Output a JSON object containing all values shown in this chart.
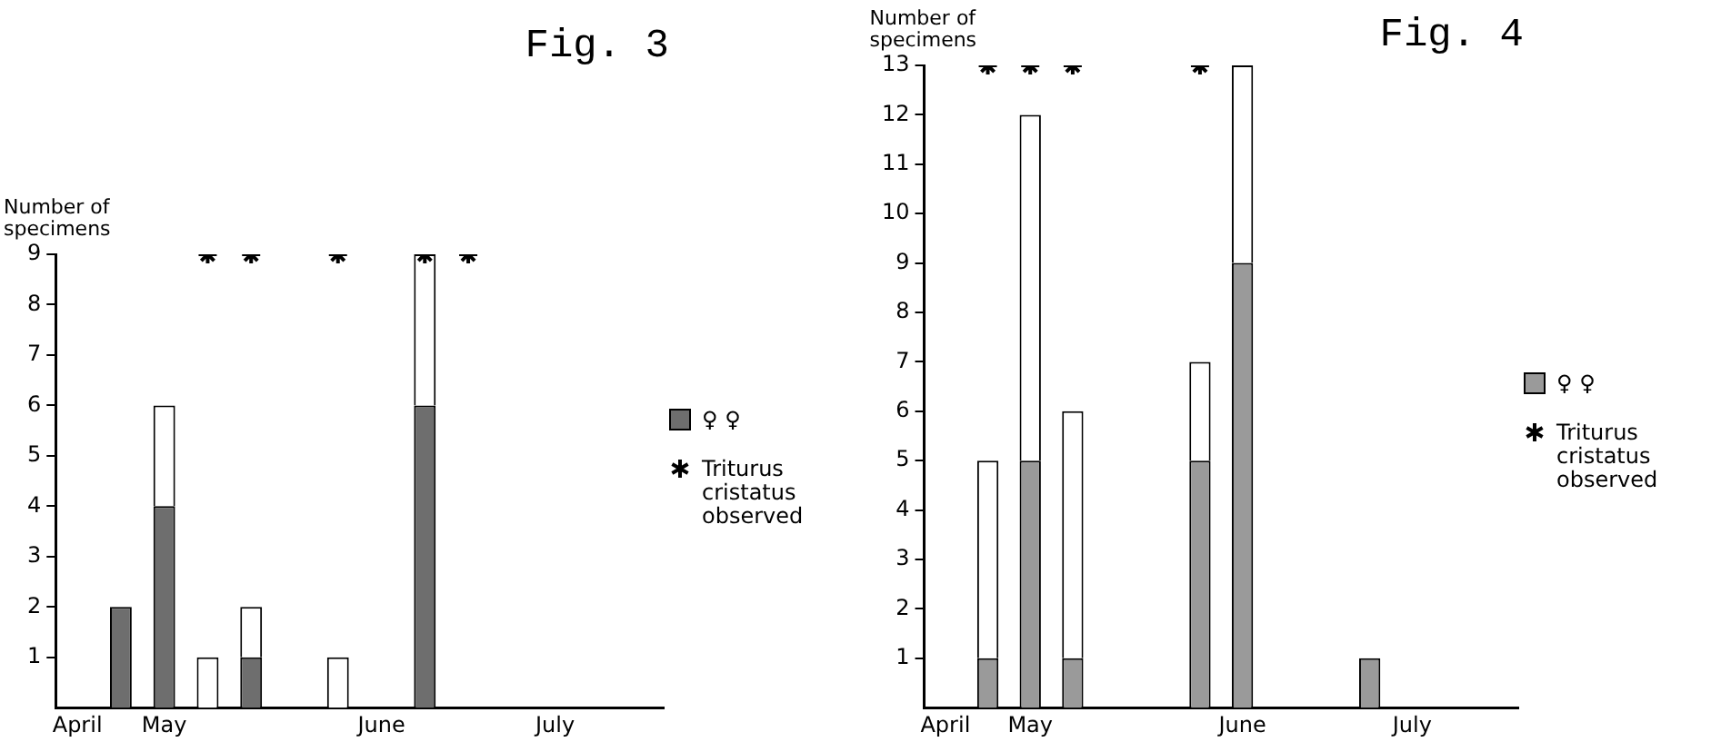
{
  "chart_data": [
    {
      "type": "bar",
      "title": "Fig. 3",
      "ylabel": "Number of specimens",
      "categories": [
        "April",
        null,
        "May",
        null,
        null,
        null,
        null,
        "June",
        null,
        null,
        null,
        "July",
        null,
        null
      ],
      "stacked": true,
      "ylim": [
        0,
        9
      ],
      "yticks": [
        1,
        2,
        3,
        4,
        5,
        6,
        7,
        8,
        9
      ],
      "grid": false,
      "legend": "right",
      "marker": "cross",
      "series": [
        {
          "name": "♀ ♀",
          "color": "#6e6e6e",
          "values": [
            null,
            2,
            4,
            null,
            1,
            null,
            null,
            null,
            6,
            null,
            null,
            null,
            null,
            null
          ]
        },
        {
          "color": "#ffffff",
          "values": [
            null,
            null,
            2,
            1,
            1,
            null,
            1,
            null,
            3,
            null,
            null,
            null,
            null,
            null
          ]
        },
        {
          "type": "scatter",
          "name": "Triturus cristatus observed",
          "color": "#000000",
          "values": [
            null,
            null,
            null,
            9,
            9,
            null,
            9,
            null,
            9,
            9,
            null,
            null,
            null,
            null
          ]
        }
      ]
    },
    {
      "type": "bar",
      "title": "Fig. 4",
      "ylabel": "Number of specimens",
      "categories": [
        "April",
        null,
        "May",
        null,
        null,
        null,
        null,
        "June",
        null,
        null,
        null,
        "July",
        null,
        null
      ],
      "stacked": true,
      "ylim": [
        0,
        13
      ],
      "yticks": [
        1,
        2,
        3,
        4,
        5,
        6,
        7,
        8,
        9,
        10,
        11,
        12,
        13
      ],
      "grid": false,
      "legend": "right",
      "marker": "cross",
      "series": [
        {
          "name": "♀ ♀",
          "color": "#9a9a9a",
          "values": [
            null,
            1,
            5,
            1,
            null,
            null,
            5,
            9,
            null,
            null,
            1,
            null,
            null,
            null
          ]
        },
        {
          "color": "#ffffff",
          "values": [
            null,
            4,
            7,
            5,
            null,
            null,
            2,
            4,
            null,
            null,
            null,
            null,
            null,
            null
          ]
        },
        {
          "type": "scatter",
          "name": "Triturus cristatus observed",
          "color": "#000000",
          "values": [
            null,
            13,
            13,
            13,
            null,
            null,
            13,
            null,
            null,
            null,
            null,
            null,
            null,
            null
          ]
        }
      ]
    }
  ]
}
